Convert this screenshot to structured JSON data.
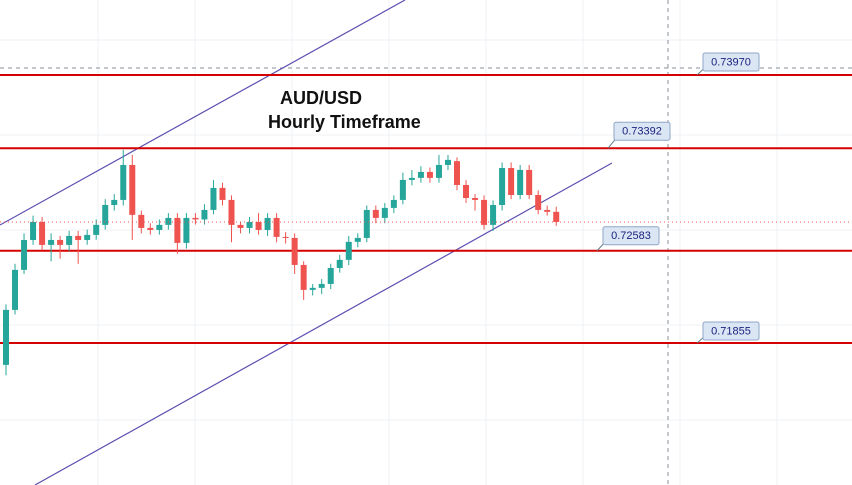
{
  "chart_data": {
    "type": "candlestick",
    "title": "AUD/USD",
    "subtitle": "Hourly Timeframe",
    "ylim": [
      0.70734,
      0.74562
    ],
    "grid": true,
    "up_color": "#26a69a",
    "down_color": "#ef5350",
    "open": [
      0.71682,
      0.72116,
      0.72432,
      0.72668,
      0.7281,
      0.72629,
      0.72668,
      0.72629,
      0.727,
      0.72668,
      0.72708,
      0.72787,
      0.72944,
      0.72984,
      0.7326,
      0.72866,
      0.72763,
      0.72747,
      0.72787,
      0.72842,
      0.72645,
      0.72842,
      0.7283,
      0.72905,
      0.73079,
      0.72984,
      0.72787,
      0.72763,
      0.7281,
      0.72747,
      0.72842,
      0.72692,
      0.72684,
      0.72471,
      0.72274,
      0.7229,
      0.72321,
      0.72447,
      0.72511,
      0.72653,
      0.72684,
      0.72905,
      0.72842,
      0.72921,
      0.72984,
      0.73142,
      0.73158,
      0.73205,
      0.73158,
      0.7326,
      0.7329,
      0.73102,
      0.72999,
      0.72984,
      0.72787,
      0.72944,
      0.73236,
      0.73023,
      0.73221,
      0.73023,
      0.72905,
      0.7289
    ],
    "high": [
      0.7216,
      0.7248,
      0.7272,
      0.7286,
      0.7285,
      0.7272,
      0.727,
      0.7274,
      0.7274,
      0.7275,
      0.7283,
      0.7299,
      0.7303,
      0.73379,
      0.73339,
      0.729,
      0.728,
      0.7283,
      0.7288,
      0.7288,
      0.7288,
      0.7288,
      0.7295,
      0.73142,
      0.7312,
      0.7302,
      0.7281,
      0.7285,
      0.7288,
      0.7288,
      0.7288,
      0.7273,
      0.7272,
      0.725,
      0.7232,
      0.7236,
      0.7248,
      0.7255,
      0.727,
      0.7272,
      0.7294,
      0.7294,
      0.7296,
      0.7302,
      0.732,
      0.7322,
      0.7325,
      0.7324,
      0.73339,
      0.73339,
      0.7332,
      0.7314,
      0.7303,
      0.7302,
      0.7298,
      0.7328,
      0.7328,
      0.7326,
      0.7326,
      0.7306,
      0.7294,
      0.7293
    ],
    "low": [
      0.716,
      0.7208,
      0.724,
      0.7263,
      0.7259,
      0.725,
      0.7252,
      0.7258,
      0.7248,
      0.7263,
      0.7267,
      0.7275,
      0.729,
      0.7294,
      0.72668,
      0.7272,
      0.7271,
      0.7271,
      0.7275,
      0.7256,
      0.726,
      0.7279,
      0.7279,
      0.7287,
      0.7294,
      0.7265,
      0.7272,
      0.7272,
      0.7271,
      0.727,
      0.7265,
      0.7264,
      0.724,
      0.72195,
      0.7223,
      0.7224,
      0.7228,
      0.7241,
      0.7247,
      0.7261,
      0.7265,
      0.728,
      0.728,
      0.7288,
      0.7295,
      0.731,
      0.7312,
      0.7312,
      0.7312,
      0.7322,
      0.7306,
      0.7296,
      0.729,
      0.7275,
      0.7274,
      0.729,
      0.7299,
      0.7299,
      0.7299,
      0.7287,
      0.7286,
      0.7278
    ],
    "close": [
      0.72116,
      0.72432,
      0.72668,
      0.7281,
      0.72629,
      0.72668,
      0.72629,
      0.727,
      0.72668,
      0.72708,
      0.72787,
      0.72944,
      0.72984,
      0.7326,
      0.72866,
      0.72763,
      0.72747,
      0.72787,
      0.72842,
      0.72645,
      0.72842,
      0.7283,
      0.72905,
      0.73079,
      0.72984,
      0.72787,
      0.72763,
      0.7281,
      0.72747,
      0.72842,
      0.72692,
      0.72684,
      0.72471,
      0.72274,
      0.7229,
      0.72321,
      0.72447,
      0.72511,
      0.72653,
      0.72684,
      0.72905,
      0.72842,
      0.72921,
      0.72984,
      0.73142,
      0.73158,
      0.73205,
      0.73158,
      0.7326,
      0.733,
      0.73102,
      0.72999,
      0.72984,
      0.72787,
      0.72944,
      0.73236,
      0.73023,
      0.73221,
      0.73023,
      0.72905,
      0.7289,
      0.7281
    ],
    "levels": {
      "color": "#d50000",
      "values": [
        0.7397,
        0.73392,
        0.72583,
        0.71855
      ],
      "value_labels": [
        "0.73970",
        "0.73392",
        "0.72583",
        "0.71855"
      ]
    }
  }
}
